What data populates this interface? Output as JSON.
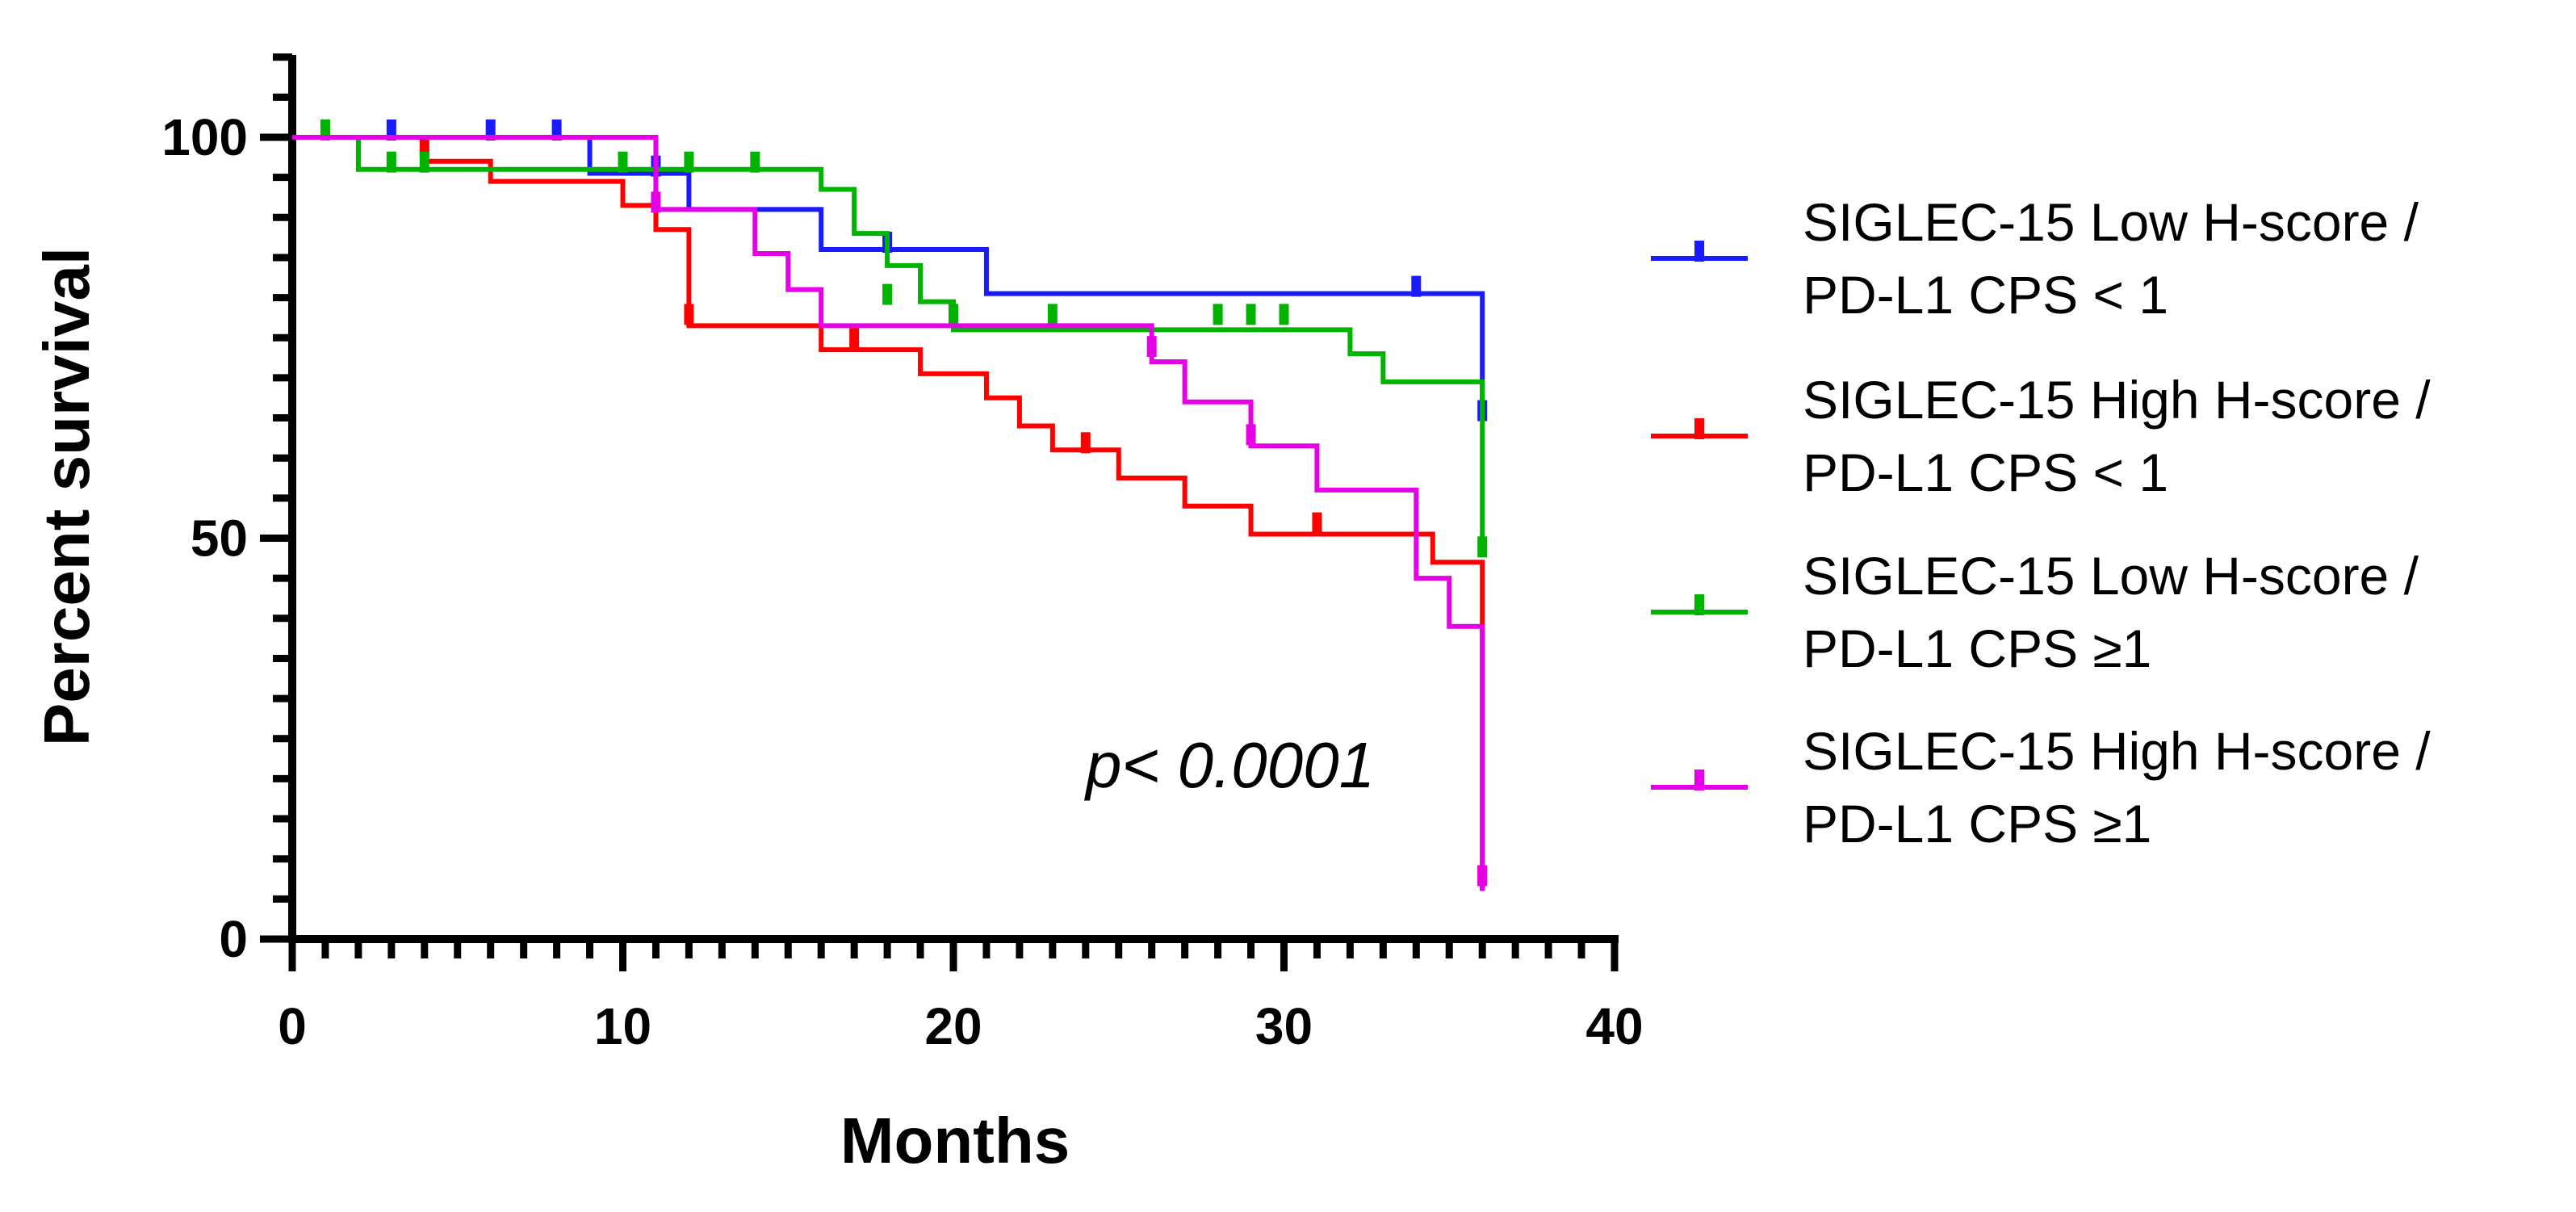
{
  "chart_data": {
    "type": "kaplan-meier",
    "title": "",
    "xlabel": "Months",
    "ylabel": "Percent survival",
    "xlim": [
      0,
      40
    ],
    "ylim": [
      0,
      110
    ],
    "xticks": [
      0,
      10,
      20,
      30,
      40
    ],
    "yticks": [
      0,
      50,
      100
    ],
    "x_minor_step": 1,
    "y_minor_step": 5,
    "grid": false,
    "legend_position": "right",
    "annotation": "p< 0.0001",
    "series": [
      {
        "name_line1": "SIGLEC-15 Low H-score /",
        "name_line2": "PD-L1 CPS < 1",
        "color": "#1a1aff",
        "steps": [
          [
            0,
            100
          ],
          [
            9,
            95.5
          ],
          [
            12,
            91
          ],
          [
            16,
            86
          ],
          [
            21,
            80.5
          ],
          [
            36,
            65
          ]
        ],
        "end": 36,
        "censored": [
          [
            3,
            100
          ],
          [
            6,
            100
          ],
          [
            8,
            100
          ],
          [
            11,
            95.5
          ],
          [
            18,
            86
          ],
          [
            34,
            80.5
          ],
          [
            36,
            65
          ]
        ]
      },
      {
        "name_line1": "SIGLEC-15 High  H-score /",
        "name_line2": "PD-L1 CPS < 1",
        "color": "#ff0000",
        "steps": [
          [
            0,
            100
          ],
          [
            4,
            97
          ],
          [
            6,
            94.5
          ],
          [
            10,
            91.5
          ],
          [
            11,
            88.5
          ],
          [
            12,
            76.5
          ],
          [
            16,
            73.5
          ],
          [
            19,
            70.5
          ],
          [
            21,
            67.5
          ],
          [
            22,
            64
          ],
          [
            23,
            61
          ],
          [
            25,
            57.5
          ],
          [
            27,
            54
          ],
          [
            29,
            50.5
          ],
          [
            34,
            50.5
          ],
          [
            34.5,
            47
          ],
          [
            36,
            6
          ]
        ],
        "end": 36,
        "censored": [
          [
            4,
            98
          ],
          [
            12,
            77
          ],
          [
            17,
            74
          ],
          [
            24,
            61
          ],
          [
            31,
            51
          ],
          [
            36,
            7
          ]
        ]
      },
      {
        "name_line1": "SIGLEC-15 Low  H-score /",
        "name_line2": "PD-L1 CPS ≥1",
        "color": "#00b300",
        "steps": [
          [
            0,
            100
          ],
          [
            2,
            96
          ],
          [
            15,
            96
          ],
          [
            16,
            93.5
          ],
          [
            17,
            88
          ],
          [
            18,
            84
          ],
          [
            19,
            79.5
          ],
          [
            20,
            76
          ],
          [
            32,
            73
          ],
          [
            33,
            69.5
          ],
          [
            36,
            48
          ]
        ],
        "end": 36,
        "censored": [
          [
            1,
            100
          ],
          [
            3,
            96
          ],
          [
            4,
            96
          ],
          [
            10,
            96
          ],
          [
            12,
            96
          ],
          [
            14,
            96
          ],
          [
            18,
            79.5
          ],
          [
            20,
            77
          ],
          [
            23,
            77
          ],
          [
            28,
            77
          ],
          [
            29,
            77
          ],
          [
            30,
            77
          ],
          [
            36,
            48
          ]
        ]
      },
      {
        "name_line1": "SIGLEC-15 High  H-score /",
        "name_line2": "PD-L1 CPS ≥1",
        "color": "#e600e6",
        "steps": [
          [
            0,
            100
          ],
          [
            11,
            91
          ],
          [
            14,
            85.5
          ],
          [
            15,
            81
          ],
          [
            16,
            76.5
          ],
          [
            26,
            72
          ],
          [
            27,
            67
          ],
          [
            29,
            61.5
          ],
          [
            31,
            56
          ],
          [
            34,
            45
          ],
          [
            35,
            39
          ],
          [
            36,
            6
          ]
        ],
        "end": 36,
        "censored": [
          [
            11,
            91
          ],
          [
            26,
            73
          ],
          [
            29,
            62
          ],
          [
            36,
            7
          ]
        ]
      }
    ]
  }
}
